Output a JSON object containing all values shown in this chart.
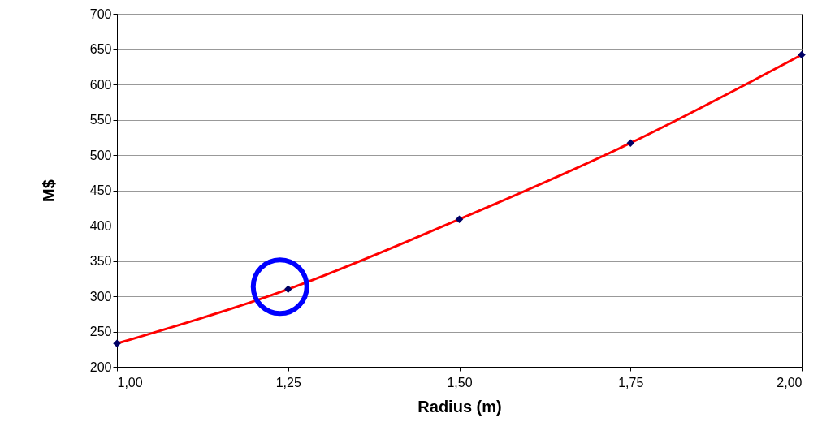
{
  "chart_data": {
    "type": "line",
    "xlabel": "Radius (m)",
    "ylabel": "M$",
    "x": [
      1,
      1.25,
      1.5,
      1.75,
      2
    ],
    "series": [
      {
        "type": "line",
        "color": "#ff0000",
        "values": [
          233,
          310,
          409,
          517,
          642
        ]
      },
      {
        "type": "scatter",
        "color": "#000066",
        "marker": "diamond",
        "values": [
          233,
          310,
          409,
          517,
          642
        ]
      }
    ],
    "xlim": [
      1,
      2
    ],
    "xticks": [
      {
        "value": 1,
        "label": "1,00"
      },
      {
        "value": 1.25,
        "label": "1,25"
      },
      {
        "value": 1.5,
        "label": "1,50"
      },
      {
        "value": 1.75,
        "label": "1,75"
      },
      {
        "value": 2,
        "label": "2,00"
      }
    ],
    "ylim": [
      200,
      700
    ],
    "yticks": [
      200,
      250,
      300,
      350,
      400,
      450,
      500,
      550,
      600,
      650,
      700
    ],
    "grid": "y"
  }
}
